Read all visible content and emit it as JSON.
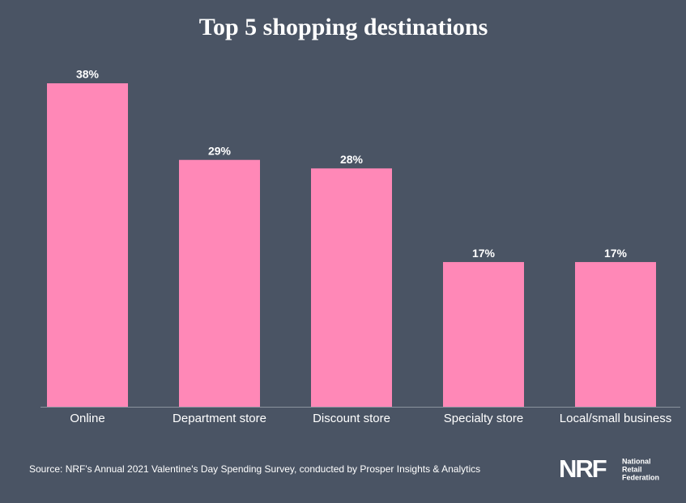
{
  "chart_data": {
    "type": "bar",
    "title": "Top 5 shopping destinations",
    "categories": [
      "Online",
      "Department store",
      "Discount store",
      "Specialty store",
      "Local/small business"
    ],
    "values": [
      38,
      29,
      28,
      17,
      17
    ],
    "value_labels": [
      "38%",
      "29%",
      "28%",
      "17%",
      "17%"
    ],
    "color": "#ff88b7",
    "source": "Source: NRF's Annual 2021 Valentine's Day Spending Survey, conducted by Prosper Insights & Analytics",
    "logo": "NRF",
    "logo_text": [
      "National",
      "Retail",
      "Federation"
    ]
  }
}
